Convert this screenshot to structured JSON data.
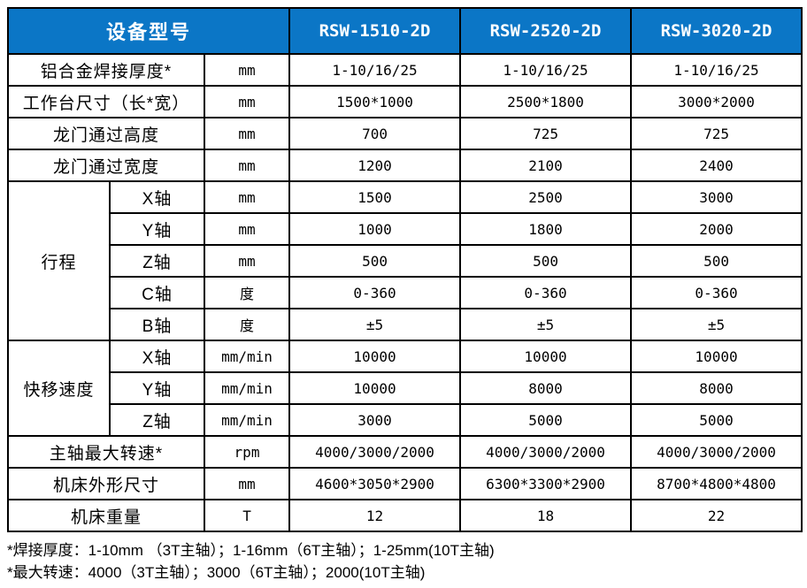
{
  "colors": {
    "header_bg": "#0b76c6",
    "header_text": "#ffffff",
    "border": "#000000",
    "body_text": "#000000",
    "background": "#ffffff"
  },
  "header": {
    "device_model_label": "设备型号",
    "models": [
      "RSW-1510-2D",
      "RSW-2520-2D",
      "RSW-3020-2D"
    ]
  },
  "rows": [
    {
      "label": "铝合金焊接厚度*",
      "unit": "mm",
      "values": [
        "1-10/16/25",
        "1-10/16/25",
        "1-10/16/25"
      ]
    },
    {
      "label": "工作台尺寸（长*宽）",
      "unit": "mm",
      "values": [
        "1500*1000",
        "2500*1800",
        "3000*2000"
      ]
    },
    {
      "label": "龙门通过高度",
      "unit": "mm",
      "values": [
        "700",
        "725",
        "725"
      ]
    },
    {
      "label": "龙门通过宽度",
      "unit": "mm",
      "values": [
        "1200",
        "2100",
        "2400"
      ]
    },
    {
      "group": "行程",
      "group_rows": 5,
      "label": "X轴",
      "unit": "mm",
      "values": [
        "1500",
        "2500",
        "3000"
      ]
    },
    {
      "in_group": true,
      "label": "Y轴",
      "unit": "mm",
      "values": [
        "1000",
        "1800",
        "2000"
      ]
    },
    {
      "in_group": true,
      "label": "Z轴",
      "unit": "mm",
      "values": [
        "500",
        "500",
        "500"
      ]
    },
    {
      "in_group": true,
      "label": "C轴",
      "unit": "度",
      "values": [
        "0-360",
        "0-360",
        "0-360"
      ]
    },
    {
      "in_group": true,
      "label": "B轴",
      "unit": "度",
      "values": [
        "±5",
        "±5",
        "±5"
      ]
    },
    {
      "group": "快移速度",
      "group_rows": 3,
      "label": "X轴",
      "unit": "mm/min",
      "values": [
        "10000",
        "10000",
        "10000"
      ]
    },
    {
      "in_group": true,
      "label": "Y轴",
      "unit": "mm/min",
      "values": [
        "10000",
        "8000",
        "8000"
      ]
    },
    {
      "in_group": true,
      "label": "Z轴",
      "unit": "mm/min",
      "values": [
        "3000",
        "5000",
        "5000"
      ]
    },
    {
      "label": "主轴最大转速*",
      "unit": "rpm",
      "values": [
        "4000/3000/2000",
        "4000/3000/2000",
        "4000/3000/2000"
      ]
    },
    {
      "label": "机床外形尺寸",
      "unit": "mm",
      "values": [
        "4600*3050*2900",
        "6300*3300*2900",
        "8700*4800*4800"
      ]
    },
    {
      "label": "机床重量",
      "unit": "T",
      "values": [
        "12",
        "18",
        "22"
      ]
    }
  ],
  "notes": [
    "*焊接厚度：1-10mm （3T主轴）；1-16mm（6T主轴）；1-25mm(10T主轴)",
    "*最大转速：4000（3T主轴）；3000（6T主轴）；2000(10T主轴)"
  ]
}
